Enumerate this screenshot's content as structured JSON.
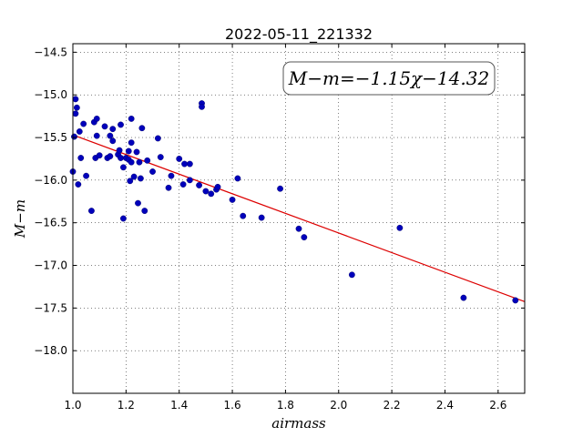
{
  "chart_data": {
    "type": "scatter",
    "title": "2022-05-11_221332",
    "xlabel": "airmass",
    "ylabel": "M−m",
    "xlim": [
      1.0,
      2.7
    ],
    "ylim": [
      -18.5,
      -14.4
    ],
    "y_inverted": true,
    "grid": true,
    "xticks": [
      "1.0",
      "1.2",
      "1.4",
      "1.6",
      "1.8",
      "2.0",
      "2.2",
      "2.4",
      "2.6"
    ],
    "xtick_values": [
      1.0,
      1.2,
      1.4,
      1.6,
      1.8,
      2.0,
      2.2,
      2.4,
      2.6
    ],
    "yticks": [
      "−14.5",
      "−15.0",
      "−15.5",
      "−16.0",
      "−16.5",
      "−17.0",
      "−17.5",
      "−18.0"
    ],
    "ytick_values": [
      -14.5,
      -15.0,
      -15.5,
      -16.0,
      -16.5,
      -17.0,
      -17.5,
      -18.0
    ],
    "annotation": "M−m=−1.15χ−14.32",
    "fit": {
      "slope": -1.15,
      "intercept": -14.32,
      "color": "#dd0000"
    },
    "point_color": "#0000bb",
    "points": [
      [
        1.0,
        -15.9
      ],
      [
        1.005,
        -15.49
      ],
      [
        1.01,
        -15.05
      ],
      [
        1.01,
        -15.22
      ],
      [
        1.015,
        -15.15
      ],
      [
        1.02,
        -16.05
      ],
      [
        1.025,
        -15.43
      ],
      [
        1.03,
        -15.74
      ],
      [
        1.04,
        -15.34
      ],
      [
        1.05,
        -15.95
      ],
      [
        1.07,
        -16.36
      ],
      [
        1.08,
        -15.32
      ],
      [
        1.085,
        -15.74
      ],
      [
        1.09,
        -15.48
      ],
      [
        1.09,
        -15.28
      ],
      [
        1.1,
        -15.71
      ],
      [
        1.12,
        -15.37
      ],
      [
        1.13,
        -15.74
      ],
      [
        1.14,
        -15.72
      ],
      [
        1.14,
        -15.48
      ],
      [
        1.15,
        -15.4
      ],
      [
        1.15,
        -15.54
      ],
      [
        1.17,
        -15.7
      ],
      [
        1.175,
        -15.65
      ],
      [
        1.18,
        -15.35
      ],
      [
        1.18,
        -15.74
      ],
      [
        1.19,
        -15.85
      ],
      [
        1.19,
        -16.45
      ],
      [
        1.2,
        -15.74
      ],
      [
        1.21,
        -15.76
      ],
      [
        1.21,
        -15.66
      ],
      [
        1.215,
        -16.01
      ],
      [
        1.22,
        -15.28
      ],
      [
        1.22,
        -15.56
      ],
      [
        1.22,
        -15.79
      ],
      [
        1.23,
        -15.96
      ],
      [
        1.24,
        -15.67
      ],
      [
        1.245,
        -16.27
      ],
      [
        1.25,
        -15.79
      ],
      [
        1.255,
        -15.98
      ],
      [
        1.26,
        -15.39
      ],
      [
        1.27,
        -16.36
      ],
      [
        1.28,
        -15.77
      ],
      [
        1.3,
        -15.9
      ],
      [
        1.32,
        -15.51
      ],
      [
        1.33,
        -15.73
      ],
      [
        1.36,
        -16.09
      ],
      [
        1.37,
        -15.95
      ],
      [
        1.4,
        -15.75
      ],
      [
        1.415,
        -16.05
      ],
      [
        1.42,
        -15.81
      ],
      [
        1.44,
        -16.0
      ],
      [
        1.44,
        -15.81
      ],
      [
        1.475,
        -16.06
      ],
      [
        1.485,
        -15.1
      ],
      [
        1.485,
        -15.14
      ],
      [
        1.5,
        -16.13
      ],
      [
        1.52,
        -16.16
      ],
      [
        1.54,
        -16.11
      ],
      [
        1.545,
        -16.08
      ],
      [
        1.6,
        -16.23
      ],
      [
        1.62,
        -15.98
      ],
      [
        1.64,
        -16.42
      ],
      [
        1.71,
        -16.44
      ],
      [
        1.78,
        -16.1
      ],
      [
        1.85,
        -16.57
      ],
      [
        1.87,
        -16.67
      ],
      [
        2.05,
        -17.11
      ],
      [
        2.23,
        -16.56
      ],
      [
        2.47,
        -17.38
      ],
      [
        2.665,
        -17.41
      ]
    ]
  }
}
